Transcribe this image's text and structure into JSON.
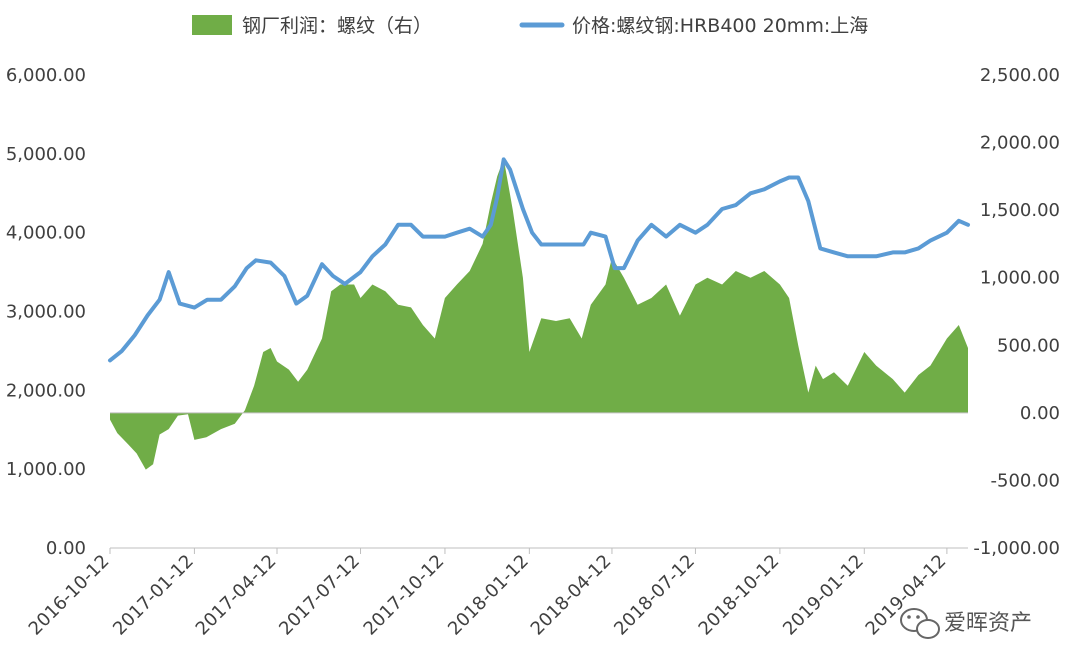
{
  "chart_data": {
    "type": "line+area",
    "legend": [
      {
        "key": "profit",
        "label": "钢厂利润：螺纹（右）",
        "color": "#70ad47"
      },
      {
        "key": "price",
        "label": "价格:螺纹钢:HRB400 20mm:上海",
        "color": "#5b9bd5"
      }
    ],
    "x_tick_labels": [
      "2016-10-12",
      "2017-01-12",
      "2017-04-12",
      "2017-07-12",
      "2017-10-12",
      "2018-01-12",
      "2018-04-12",
      "2018-07-12",
      "2018-10-12",
      "2019-01-12",
      "2019-04-12"
    ],
    "y_left": {
      "min": 0,
      "max": 6000,
      "ticks": [
        "0.00",
        "1,000.00",
        "2,000.00",
        "3,000.00",
        "4,000.00",
        "5,000.00",
        "6,000.00"
      ]
    },
    "y_right": {
      "min": -1000,
      "max": 2500,
      "ticks": [
        "-1,000.00",
        "-500.00",
        "0.00",
        "500.00",
        "1,000.00",
        "1,500.00",
        "2,000.00",
        "2,500.00"
      ]
    },
    "series": [
      {
        "name": "价格:螺纹钢:HRB400 20mm:上海",
        "axis": "left",
        "render": "line",
        "x": [
          "2016-10-12",
          "2016-10-25",
          "2016-11-08",
          "2016-11-22",
          "2016-12-05",
          "2016-12-15",
          "2016-12-27",
          "2017-01-12",
          "2017-01-26",
          "2017-02-10",
          "2017-02-25",
          "2017-03-10",
          "2017-03-20",
          "2017-04-05",
          "2017-04-20",
          "2017-05-03",
          "2017-05-15",
          "2017-05-31",
          "2017-06-12",
          "2017-06-25",
          "2017-07-12",
          "2017-07-25",
          "2017-08-08",
          "2017-08-22",
          "2017-09-05",
          "2017-09-18",
          "2017-10-12",
          "2017-10-25",
          "2017-11-08",
          "2017-11-22",
          "2017-12-01",
          "2017-12-08",
          "2017-12-15",
          "2017-12-22",
          "2018-01-05",
          "2018-01-15",
          "2018-01-25",
          "2018-02-12",
          "2018-03-01",
          "2018-03-12",
          "2018-03-20",
          "2018-04-05",
          "2018-04-15",
          "2018-04-25",
          "2018-05-10",
          "2018-05-25",
          "2018-06-10",
          "2018-06-25",
          "2018-07-12",
          "2018-07-25",
          "2018-08-10",
          "2018-08-25",
          "2018-09-10",
          "2018-09-25",
          "2018-10-12",
          "2018-10-22",
          "2018-11-01",
          "2018-11-12",
          "2018-11-25",
          "2018-12-10",
          "2018-12-25",
          "2019-01-12",
          "2019-01-25",
          "2019-02-12",
          "2019-02-25",
          "2019-03-12",
          "2019-03-25",
          "2019-04-12",
          "2019-04-25",
          "2019-05-05"
        ],
        "values": [
          2380,
          2500,
          2700,
          2950,
          3150,
          3500,
          3100,
          3050,
          3150,
          3150,
          3320,
          3550,
          3650,
          3620,
          3450,
          3100,
          3200,
          3600,
          3450,
          3350,
          3500,
          3700,
          3850,
          4100,
          4100,
          3950,
          3950,
          4000,
          4050,
          3950,
          4100,
          4450,
          4930,
          4800,
          4300,
          4000,
          3850,
          3850,
          3850,
          3850,
          4000,
          3950,
          3550,
          3550,
          3900,
          4100,
          3950,
          4100,
          4000,
          4100,
          4300,
          4350,
          4500,
          4550,
          4650,
          4700,
          4700,
          4400,
          3800,
          3750,
          3700,
          3700,
          3700,
          3750,
          3750,
          3800,
          3900,
          4000,
          4150,
          4100
        ]
      },
      {
        "name": "钢厂利润：螺纹（右）",
        "axis": "right",
        "render": "area",
        "x": [
          "2016-10-12",
          "2016-10-20",
          "2016-10-30",
          "2016-11-10",
          "2016-11-20",
          "2016-11-28",
          "2016-12-05",
          "2016-12-15",
          "2016-12-25",
          "2017-01-05",
          "2017-01-12",
          "2017-01-25",
          "2017-02-10",
          "2017-02-25",
          "2017-03-08",
          "2017-03-18",
          "2017-03-28",
          "2017-04-05",
          "2017-04-12",
          "2017-04-25",
          "2017-05-05",
          "2017-05-15",
          "2017-05-31",
          "2017-06-10",
          "2017-06-20",
          "2017-07-05",
          "2017-07-12",
          "2017-07-25",
          "2017-08-08",
          "2017-08-22",
          "2017-09-05",
          "2017-09-18",
          "2017-10-01",
          "2017-10-12",
          "2017-10-25",
          "2017-11-08",
          "2017-11-22",
          "2017-12-01",
          "2017-12-08",
          "2017-12-15",
          "2017-12-25",
          "2018-01-05",
          "2018-01-12",
          "2018-01-25",
          "2018-02-10",
          "2018-02-25",
          "2018-03-10",
          "2018-03-20",
          "2018-04-05",
          "2018-04-12",
          "2018-04-25",
          "2018-05-10",
          "2018-05-25",
          "2018-06-10",
          "2018-06-25",
          "2018-07-12",
          "2018-07-25",
          "2018-08-10",
          "2018-08-25",
          "2018-09-10",
          "2018-09-25",
          "2018-10-12",
          "2018-10-22",
          "2018-11-01",
          "2018-11-12",
          "2018-11-20",
          "2018-11-28",
          "2018-12-10",
          "2018-12-25",
          "2019-01-12",
          "2019-01-25",
          "2019-02-12",
          "2019-02-25",
          "2019-03-12",
          "2019-03-25",
          "2019-04-12",
          "2019-04-25",
          "2019-05-05"
        ],
        "values": [
          -50,
          -150,
          -220,
          -300,
          -420,
          -380,
          -160,
          -120,
          -20,
          -10,
          -200,
          -180,
          -120,
          -80,
          20,
          200,
          450,
          480,
          380,
          320,
          230,
          320,
          550,
          900,
          950,
          950,
          850,
          950,
          900,
          800,
          780,
          650,
          550,
          850,
          950,
          1050,
          1250,
          1550,
          1750,
          1880,
          1500,
          1000,
          450,
          700,
          680,
          700,
          550,
          800,
          950,
          1150,
          1000,
          800,
          850,
          950,
          720,
          950,
          1000,
          950,
          1050,
          1000,
          1050,
          950,
          850,
          500,
          150,
          350,
          250,
          300,
          200,
          450,
          350,
          250,
          150,
          280,
          350,
          550,
          650,
          480
        ]
      }
    ]
  },
  "watermark": {
    "text": "爱晖资产",
    "icon": "wechat-icon"
  }
}
